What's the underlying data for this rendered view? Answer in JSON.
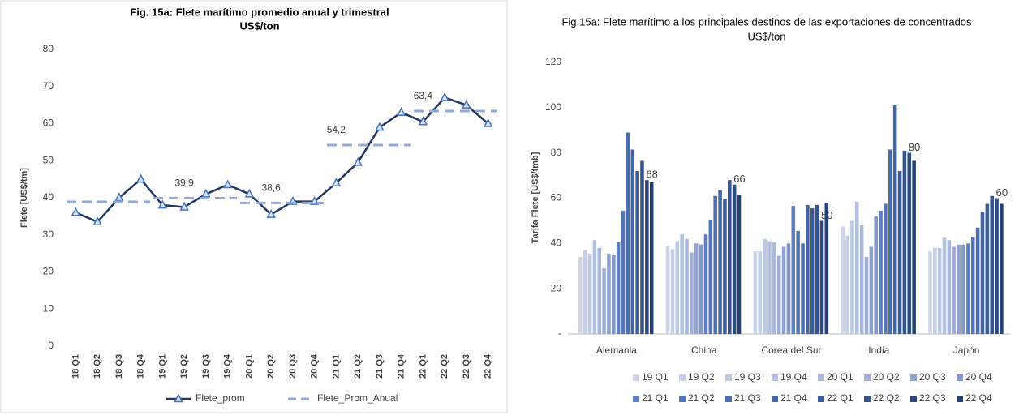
{
  "chart_data": [
    {
      "type": "line",
      "title": "Fig. 15a: Flete marítimo promedio anual y trimestral",
      "subtitle": "US$/ton",
      "y_label": "Flete [US$/tm]",
      "categories": [
        "18 Q1",
        "18 Q2",
        "18 Q3",
        "18 Q4",
        "19 Q1",
        "19 Q2",
        "19 Q3",
        "19 Q4",
        "20 Q1",
        "20 Q2",
        "20 Q3",
        "20 Q4",
        "21 Q1",
        "21 Q2",
        "21 Q3",
        "21 Q4",
        "22 Q1",
        "22 Q2",
        "22 Q3",
        "22 Q4"
      ],
      "series": [
        {
          "name": "Flete_prom",
          "color": "#203864",
          "marker": "triangle",
          "values": [
            36,
            33.5,
            40,
            45,
            38,
            37.5,
            41,
            43.5,
            41,
            35.5,
            39,
            39,
            44,
            49.5,
            59,
            63,
            60.5,
            67,
            65,
            60
          ]
        },
        {
          "name": "Flete_Prom_Anual",
          "color": "#8faadc",
          "style": "dashed",
          "values": [
            38.9,
            38.9,
            38.9,
            38.9,
            39.9,
            39.9,
            39.9,
            39.9,
            38.6,
            38.6,
            38.6,
            38.6,
            54.2,
            54.2,
            54.2,
            54.2,
            63.4,
            63.4,
            63.4,
            63.4
          ],
          "value_labels": [
            null,
            null,
            null,
            null,
            null,
            "39,9",
            null,
            null,
            null,
            "38,6",
            null,
            null,
            "54,2",
            null,
            null,
            null,
            "63,4",
            null,
            null,
            null
          ]
        }
      ],
      "ylim": [
        0,
        80
      ],
      "yticks": [
        0,
        10,
        20,
        30,
        40,
        50,
        60,
        70,
        80
      ],
      "grid": false,
      "legend": "bottom"
    },
    {
      "type": "bar",
      "title": "Fig.15a: Flete marítimo a los principales destinos de las exportaciones de concentrados",
      "subtitle": "US$/ton",
      "y_label": "Tarifa Flete [US$/tmb]",
      "categories": [
        "Alemania",
        "China",
        "Corea del Sur",
        "India",
        "Japón"
      ],
      "series": [
        {
          "name": "19 Q1",
          "color": "#cdd5ea",
          "values": [
            34,
            39,
            36.5,
            47.5,
            36.5
          ]
        },
        {
          "name": "19 Q2",
          "color": "#c5cfe7",
          "values": [
            37,
            37.5,
            36.5,
            43.5,
            38
          ]
        },
        {
          "name": "19 Q3",
          "color": "#bcc8e4",
          "values": [
            35.5,
            41,
            42,
            50,
            38
          ]
        },
        {
          "name": "19 Q4",
          "color": "#b3c1e0",
          "values": [
            41.5,
            44,
            41,
            58.5,
            42.5
          ]
        },
        {
          "name": "20 Q1",
          "color": "#a9b8db",
          "values": [
            38,
            42,
            40.5,
            48,
            41.5
          ]
        },
        {
          "name": "20 Q2",
          "color": "#9eaed6",
          "values": [
            29,
            36,
            34.5,
            34,
            38.5
          ]
        },
        {
          "name": "20 Q3",
          "color": "#90a3cf",
          "values": [
            35.5,
            40,
            38.5,
            38.5,
            39.5
          ]
        },
        {
          "name": "20 Q4",
          "color": "#8397c9",
          "values": [
            35,
            39.5,
            40,
            52,
            39.5
          ]
        },
        {
          "name": "21 Q1",
          "color": "#5b7fc0",
          "values": [
            40.5,
            44,
            56.5,
            54.5,
            40
          ]
        },
        {
          "name": "21 Q2",
          "color": "#5276b8",
          "values": [
            54.5,
            50.5,
            45.5,
            57.5,
            43
          ]
        },
        {
          "name": "21 Q3",
          "color": "#4a6daf",
          "values": [
            89,
            61,
            40,
            81.5,
            47
          ]
        },
        {
          "name": "21 Q4",
          "color": "#4265a6",
          "values": [
            81.5,
            63.5,
            57,
            101,
            54
          ]
        },
        {
          "name": "22 Q1",
          "color": "#3b5c9b",
          "values": [
            72,
            59.5,
            55.5,
            72,
            57.5
          ]
        },
        {
          "name": "22 Q2",
          "color": "#34538f",
          "values": [
            76.5,
            68,
            57,
            81,
            61
          ]
        },
        {
          "name": "22 Q3",
          "color": "#2d4a83",
          "values": [
            68,
            66,
            50,
            80,
            60
          ],
          "data_labels": true
        },
        {
          "name": "22 Q4",
          "color": "#264177",
          "values": [
            67,
            61.5,
            58,
            76.5,
            57.5
          ]
        }
      ],
      "ylim": [
        0,
        120
      ],
      "yticks": [
        {
          "value": 0,
          "label": "-"
        },
        20,
        40,
        60,
        80,
        100,
        120
      ],
      "grid": false,
      "legend": "bottom"
    }
  ]
}
